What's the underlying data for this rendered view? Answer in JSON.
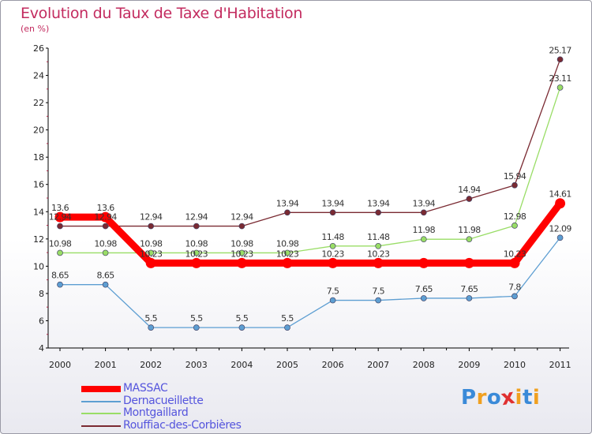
{
  "chart_data": {
    "type": "line",
    "title": "Evolution du Taux de Taxe d'Habitation",
    "subtitle": "(en %)",
    "xlabel": "",
    "ylabel": "",
    "x": [
      "2000",
      "2001",
      "2002",
      "2003",
      "2004",
      "2005",
      "2006",
      "2007",
      "2008",
      "2009",
      "2010",
      "2011"
    ],
    "ylim": [
      4,
      26
    ],
    "yticks": [
      "4",
      "6",
      "8",
      "10",
      "12",
      "14",
      "16",
      "18",
      "20",
      "22",
      "24",
      "26"
    ],
    "grid": false,
    "legend_position": "bottom-left",
    "series": [
      {
        "name": "MASSAC",
        "color": "#ff0000",
        "values": [
          13.6,
          13.6,
          10.23,
          10.23,
          10.23,
          10.23,
          10.23,
          10.23,
          10.23,
          10.23,
          10.23,
          14.61
        ],
        "labels": [
          "13.6",
          "13.6",
          "",
          "",
          "",
          "",
          "",
          "",
          "",
          "",
          "10.23",
          "14.61"
        ]
      },
      {
        "name": "Dernacueillette",
        "color": "#5d9ed2",
        "values": [
          8.65,
          8.65,
          5.5,
          5.5,
          5.5,
          5.5,
          7.5,
          7.5,
          7.65,
          7.65,
          7.8,
          12.09
        ],
        "labels": [
          "8.65",
          "8.65",
          "5.5",
          "5.5",
          "5.5",
          "5.5",
          "7.5",
          "7.5",
          "7.65",
          "7.65",
          "7.8",
          "12.09"
        ]
      },
      {
        "name": "Montgaillard",
        "color": "#99dd66",
        "values": [
          10.98,
          10.98,
          10.98,
          10.98,
          10.98,
          10.98,
          11.48,
          11.48,
          11.98,
          11.98,
          12.98,
          23.11
        ],
        "labels": [
          "10.98",
          "10.98",
          "10.98",
          "10.98",
          "10.98",
          "10.98",
          "11.48",
          "11.48",
          "11.98",
          "11.98",
          "12.98",
          "23.11"
        ]
      },
      {
        "name": "Rouffiac-des-Corbières",
        "color": "#7a2a32",
        "values": [
          12.94,
          12.94,
          12.94,
          12.94,
          12.94,
          13.94,
          13.94,
          13.94,
          13.94,
          14.94,
          15.94,
          25.17
        ],
        "labels": [
          "12.94",
          "12.94",
          "12.94",
          "12.94",
          "12.94",
          "13.94",
          "13.94",
          "13.94",
          "13.94",
          "14.94",
          "15.94",
          "25.17"
        ]
      }
    ],
    "extra_labels": [
      {
        "series": 1,
        "index": 2,
        "text": "10.23"
      },
      {
        "series": 1,
        "index": 3,
        "text": "10.23"
      },
      {
        "series": 1,
        "index": 4,
        "text": "10.23"
      },
      {
        "series": 1,
        "index": 5,
        "text": "10.23"
      },
      {
        "series": 1,
        "index": 6,
        "text": "10.23"
      },
      {
        "series": 1,
        "index": 7,
        "text": "10.23"
      }
    ]
  },
  "legend": {
    "items": [
      {
        "label": "MASSAC",
        "color": "#ff0000",
        "label_color": "#5555dd"
      },
      {
        "label": "Dernacueillette",
        "color": "#5d9ed2",
        "label_color": "#5555dd"
      },
      {
        "label": "Montgaillard",
        "color": "#99dd66",
        "label_color": "#5555dd"
      },
      {
        "label": "Rouffiac-des-Corbières",
        "color": "#7a2a32",
        "label_color": "#5555dd"
      }
    ]
  },
  "logo": {
    "letters": [
      "P",
      "r",
      "o",
      "x",
      "i",
      "t",
      "i"
    ],
    "colors": [
      "#3a8ad8",
      "#f0a020",
      "#3a8ad8",
      "#e03030",
      "#f0a020",
      "#3a8ad8",
      "#f0a020"
    ]
  }
}
